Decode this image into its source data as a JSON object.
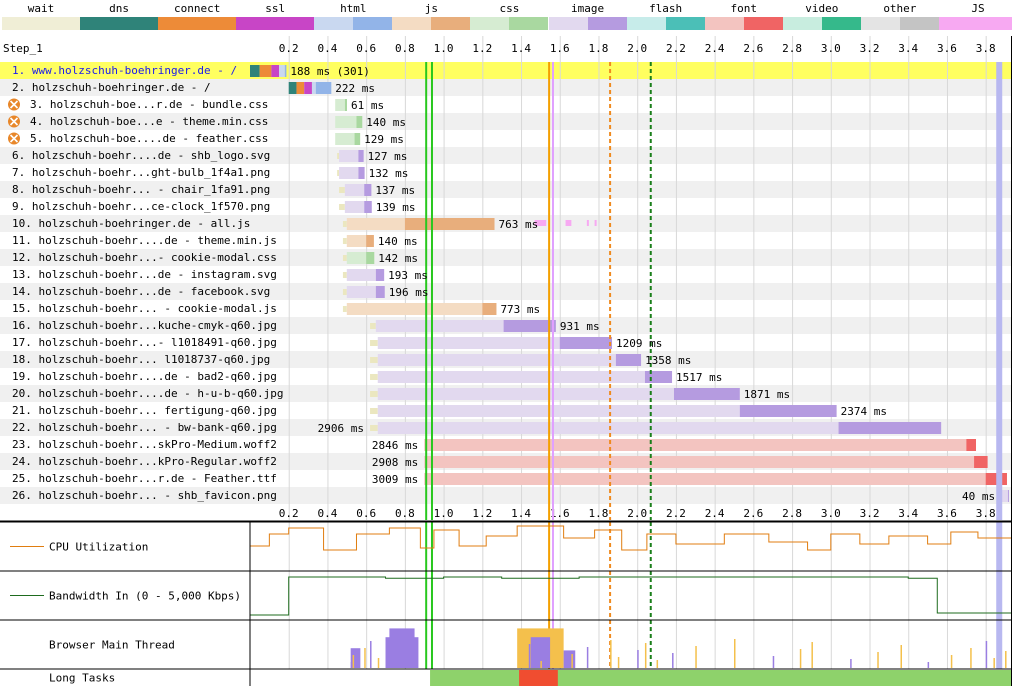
{
  "legend": [
    {
      "label": "wait",
      "colors": [
        "#f0eed6",
        "#f0eed6"
      ]
    },
    {
      "label": "dns",
      "colors": [
        "#2f8379",
        "#2f8379"
      ]
    },
    {
      "label": "connect",
      "colors": [
        "#ed8b38",
        "#ed8b38"
      ]
    },
    {
      "label": "ssl",
      "colors": [
        "#c845c6",
        "#c845c6"
      ]
    },
    {
      "label": "html",
      "colors": [
        "#c9d8f0",
        "#92b4e8"
      ]
    },
    {
      "label": "js",
      "colors": [
        "#f4dcc3",
        "#e8ae7c"
      ]
    },
    {
      "label": "css",
      "colors": [
        "#d6ecd2",
        "#a9d8a0"
      ]
    },
    {
      "label": "image",
      "colors": [
        "#e2d9ef",
        "#b59be0"
      ]
    },
    {
      "label": "flash",
      "colors": [
        "#c7ecea",
        "#4bbfb7"
      ]
    },
    {
      "label": "font",
      "colors": [
        "#f3c4c0",
        "#f06464"
      ]
    },
    {
      "label": "video",
      "colors": [
        "#c8eddf",
        "#35b98b"
      ]
    },
    {
      "label": "other",
      "colors": [
        "#e4e4e4",
        "#c4c4c4"
      ]
    },
    {
      "label": "JS Execution",
      "colors": [
        "#f7a9f2",
        "#f7a9f2"
      ]
    }
  ],
  "step_label": "Step_1",
  "timeline": {
    "max_seconds": 3.96,
    "ticks": [
      "0.2",
      "0.4",
      "0.6",
      "0.8",
      "1.0",
      "1.2",
      "1.4",
      "1.6",
      "1.8",
      "2.0",
      "2.2",
      "2.4",
      "2.6",
      "2.8",
      "3.0",
      "3.2",
      "3.4",
      "3.6",
      "3.8"
    ]
  },
  "markers": [
    {
      "name": "start-render",
      "time": 0.91,
      "color": "#28c81e",
      "style": "solid"
    },
    {
      "name": "first-paint",
      "time": 0.94,
      "color": "#28c81e",
      "style": "solid"
    },
    {
      "name": "dom-interactive",
      "time": 1.545,
      "color": "#f4a000",
      "style": "solid"
    },
    {
      "name": "dom-content-loaded",
      "time": 1.565,
      "color": "#e0a0ff",
      "style": "solid"
    },
    {
      "name": "on-load",
      "time": 1.86,
      "color": "#ef8a1e",
      "style": "dashed"
    },
    {
      "name": "document-complete",
      "time": 2.07,
      "color": "#1a7f1a",
      "style": "dashed"
    },
    {
      "name": "fully-loaded",
      "time": 3.87,
      "color": "#b8b8f0",
      "style": "solid"
    }
  ],
  "requests": [
    {
      "n": "1.",
      "label": "www.holzschuh-boehringer.de - /",
      "type": "html",
      "start": 0.0,
      "dns": 0.05,
      "connect": 0.06,
      "ssl": 0.04,
      "wait": 0.0,
      "ttfb": 0.03,
      "download": 0.008,
      "timing": "188 ms (301)",
      "highlight": true,
      "error": false,
      "link": true
    },
    {
      "n": "2.",
      "label": "holzschuh-boehringer.de - /",
      "type": "html",
      "start": 0.2,
      "dns": 0.04,
      "connect": 0.04,
      "ssl": 0.04,
      "wait": 0.0,
      "ttfb": 0.02,
      "download": 0.08,
      "timing": "222 ms",
      "highlight": false,
      "error": false,
      "link": false
    },
    {
      "n": "3.",
      "label": "holzschuh-boe...r.de - bundle.css",
      "type": "css",
      "start": 0.44,
      "wait": 0.0,
      "ttfb": 0.05,
      "download": 0.011,
      "timing": "61 ms",
      "highlight": false,
      "error": true,
      "link": false
    },
    {
      "n": "4.",
      "label": "holzschuh-boe...e - theme.min.css",
      "type": "css",
      "start": 0.44,
      "wait": 0.0,
      "ttfb": 0.11,
      "download": 0.03,
      "timing": "140 ms",
      "highlight": false,
      "error": true,
      "link": false
    },
    {
      "n": "5.",
      "label": "holzschuh-boe....de - feather.css",
      "type": "css",
      "start": 0.44,
      "wait": 0.0,
      "ttfb": 0.1,
      "download": 0.029,
      "timing": "129 ms",
      "highlight": false,
      "error": true,
      "link": false
    },
    {
      "n": "6.",
      "label": "holzschuh-boehr....de - shb_logo.svg",
      "type": "image",
      "start": 0.45,
      "wait": 0.01,
      "ttfb": 0.1,
      "download": 0.027,
      "timing": "127 ms",
      "highlight": false,
      "error": false,
      "link": false
    },
    {
      "n": "7.",
      "label": "holzschuh-boehr...ght-bulb_1f4a1.png",
      "type": "image",
      "start": 0.45,
      "wait": 0.01,
      "ttfb": 0.1,
      "download": 0.032,
      "timing": "132 ms",
      "highlight": false,
      "error": false,
      "link": false
    },
    {
      "n": "8.",
      "label": "holzschuh-boehr... - chair_1fa91.png",
      "type": "image",
      "start": 0.46,
      "wait": 0.03,
      "ttfb": 0.1,
      "download": 0.037,
      "timing": "137 ms",
      "highlight": false,
      "error": false,
      "link": false
    },
    {
      "n": "9.",
      "label": "holzschuh-boehr...ce-clock_1f570.png",
      "type": "image",
      "start": 0.46,
      "wait": 0.03,
      "ttfb": 0.1,
      "download": 0.039,
      "timing": "139 ms",
      "highlight": false,
      "error": false,
      "link": false
    },
    {
      "n": "10.",
      "label": "holzschuh-boehringer.de - all.js",
      "type": "js",
      "start": 0.48,
      "wait": 0.02,
      "ttfb": 0.3,
      "download": 0.463,
      "timing": "763 ms",
      "highlight": false,
      "error": false,
      "link": false
    },
    {
      "n": "11.",
      "label": "holzschuh-boehr....de - theme.min.js",
      "type": "js",
      "start": 0.48,
      "wait": 0.02,
      "ttfb": 0.1,
      "download": 0.04,
      "timing": "140 ms",
      "highlight": false,
      "error": false,
      "link": false
    },
    {
      "n": "12.",
      "label": "holzschuh-boehr...- cookie-modal.css",
      "type": "css",
      "start": 0.48,
      "wait": 0.02,
      "ttfb": 0.1,
      "download": 0.042,
      "timing": "142 ms",
      "highlight": false,
      "error": false,
      "link": false
    },
    {
      "n": "13.",
      "label": "holzschuh-boehr...de - instagram.svg",
      "type": "image",
      "start": 0.48,
      "wait": 0.02,
      "ttfb": 0.15,
      "download": 0.043,
      "timing": "193 ms",
      "highlight": false,
      "error": false,
      "link": false
    },
    {
      "n": "14.",
      "label": "holzschuh-boehr...de - facebook.svg",
      "type": "image",
      "start": 0.48,
      "wait": 0.02,
      "ttfb": 0.15,
      "download": 0.046,
      "timing": "196 ms",
      "highlight": false,
      "error": false,
      "link": false
    },
    {
      "n": "15.",
      "label": "holzschuh-boehr... - cookie-modal.js",
      "type": "js",
      "start": 0.48,
      "wait": 0.02,
      "ttfb": 0.7,
      "download": 0.073,
      "timing": "773 ms",
      "highlight": false,
      "error": false,
      "link": false
    },
    {
      "n": "16.",
      "label": "holzschuh-boehr...kuche-cmyk-q60.jpg",
      "type": "image",
      "start": 0.62,
      "wait": 0.03,
      "ttfb": 0.66,
      "download": 0.27,
      "timing": "931 ms",
      "highlight": false,
      "error": false,
      "link": false
    },
    {
      "n": "17.",
      "label": "holzschuh-boehr...- l1018491-q60.jpg",
      "type": "image",
      "start": 0.62,
      "wait": 0.04,
      "ttfb": 0.94,
      "download": 0.27,
      "timing": "1209 ms",
      "highlight": false,
      "error": false,
      "link": false
    },
    {
      "n": "18.",
      "label": "holzschuh-boehr... l1018737-q60.jpg",
      "type": "image",
      "start": 0.62,
      "wait": 0.04,
      "ttfb": 1.23,
      "download": 0.13,
      "timing": "1358 ms",
      "highlight": false,
      "error": false,
      "link": false
    },
    {
      "n": "19.",
      "label": "holzschuh-boehr....de - bad2-q60.jpg",
      "type": "image",
      "start": 0.62,
      "wait": 0.04,
      "ttfb": 1.38,
      "download": 0.14,
      "timing": "1517 ms",
      "highlight": false,
      "error": false,
      "link": false
    },
    {
      "n": "20.",
      "label": "holzschuh-boehr....de - h-u-b-q60.jpg",
      "type": "image",
      "start": 0.62,
      "wait": 0.04,
      "ttfb": 1.53,
      "download": 0.34,
      "timing": "1871 ms",
      "highlight": false,
      "error": false,
      "link": false
    },
    {
      "n": "21.",
      "label": "holzschuh-boehr... fertigung-q60.jpg",
      "type": "image",
      "start": 0.62,
      "wait": 0.04,
      "ttfb": 1.87,
      "download": 0.5,
      "timing": "2374 ms",
      "highlight": false,
      "error": false,
      "link": false
    },
    {
      "n": "22.",
      "label": "holzschuh-boehr... - bw-bank-q60.jpg",
      "type": "image",
      "start": 0.62,
      "wait": 0.04,
      "ttfb": 2.38,
      "download": 0.53,
      "timing": "2906 ms",
      "highlight": false,
      "error": false,
      "link": false
    },
    {
      "n": "23.",
      "label": "holzschuh-boehr...skPro-Medium.woff2",
      "type": "font",
      "start": 0.9,
      "wait": 0.0,
      "ttfb": 2.8,
      "download": 0.05,
      "timing": "2846 ms",
      "highlight": false,
      "error": false,
      "link": false
    },
    {
      "n": "24.",
      "label": "holzschuh-boehr...kPro-Regular.woff2",
      "type": "font",
      "start": 0.9,
      "wait": 0.0,
      "ttfb": 2.84,
      "download": 0.07,
      "timing": "2908 ms",
      "highlight": false,
      "error": false,
      "link": false
    },
    {
      "n": "25.",
      "label": "holzschuh-boehr...r.de - Feather.ttf",
      "type": "font",
      "start": 0.9,
      "wait": 0.0,
      "ttfb": 2.9,
      "download": 0.11,
      "timing": "3009 ms",
      "highlight": false,
      "error": false,
      "link": false
    },
    {
      "n": "26.",
      "label": "holzschuh-boehr... - shb_favicon.png",
      "type": "image",
      "start": 3.88,
      "wait": 0.0,
      "ttfb": 0.035,
      "download": 0.005,
      "timing": "40 ms",
      "highlight": false,
      "error": false,
      "link": false
    }
  ],
  "panels": {
    "cpu": {
      "label": "CPU Utilization",
      "color": "#e07d10"
    },
    "bandwidth": {
      "label": "Bandwidth In (0 - 5,000 Kbps)",
      "color": "#1e6b1e"
    },
    "main_thread": {
      "label": "Browser Main Thread"
    },
    "long_tasks": {
      "label": "Long Tasks"
    }
  },
  "colors": {
    "highlight_row": "#ffff60",
    "row_stripe": "#f0f0f0",
    "grid": "#d8d8d8",
    "error_icon": "#e8872a",
    "long_task_ok": "#8ed26b",
    "long_task_block": "#f04d30",
    "main_thread_script": "#f4c04c",
    "main_thread_layout": "#9a7ee2",
    "main_thread_paint": "#6db35c"
  }
}
